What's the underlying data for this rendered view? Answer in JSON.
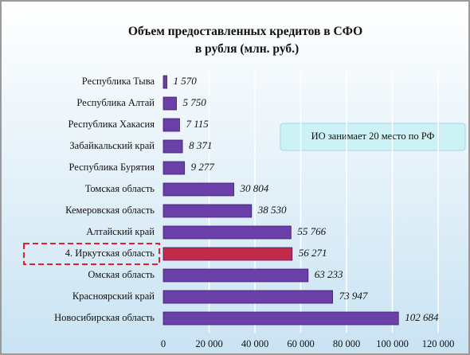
{
  "chart_data": {
    "type": "bar",
    "orientation": "horizontal",
    "title": "Объем предоставленных кредитов в СФО в рубля (млн. руб.)",
    "annotation": "ИО занимает 20 место по РФ",
    "categories": [
      "Республика Тыва",
      "Республика Алтай",
      "Республика Хакасия",
      "Забайкальский край",
      "Республика Бурятия",
      "Томская область",
      "Кемеровская область",
      "Алтайский край",
      "4. Иркутская область",
      "Омская область",
      "Красноярский край",
      "Новосибирская область"
    ],
    "values": [
      1570,
      5750,
      7115,
      8371,
      9277,
      30804,
      38530,
      55766,
      56271,
      63233,
      73947,
      102684
    ],
    "value_labels": [
      "1 570",
      "5 750",
      "7 115",
      "8 371",
      "9 277",
      "30 804",
      "38 530",
      "55 766",
      "56 271",
      "63 233",
      "73 947",
      "102 684"
    ],
    "colors": [
      "#6b3fa8",
      "#6b3fa8",
      "#6b3fa8",
      "#6b3fa8",
      "#6b3fa8",
      "#6b3fa8",
      "#6b3fa8",
      "#6b3fa8",
      "#c22a4a",
      "#6b3fa8",
      "#6b3fa8",
      "#6b3fa8"
    ],
    "xlim": [
      0,
      120000
    ],
    "xticks": [
      0,
      {
        "value": 20000,
        "label": "20 000"
      },
      {
        "value": 40000,
        "label": "40 000"
      },
      {
        "value": 60000,
        "label": "60 000"
      },
      {
        "value": 80000,
        "label": "80 000"
      },
      {
        "value": 100000,
        "label": "100 000"
      },
      {
        "value": 120000,
        "label": "120 000"
      }
    ],
    "grid": true
  }
}
